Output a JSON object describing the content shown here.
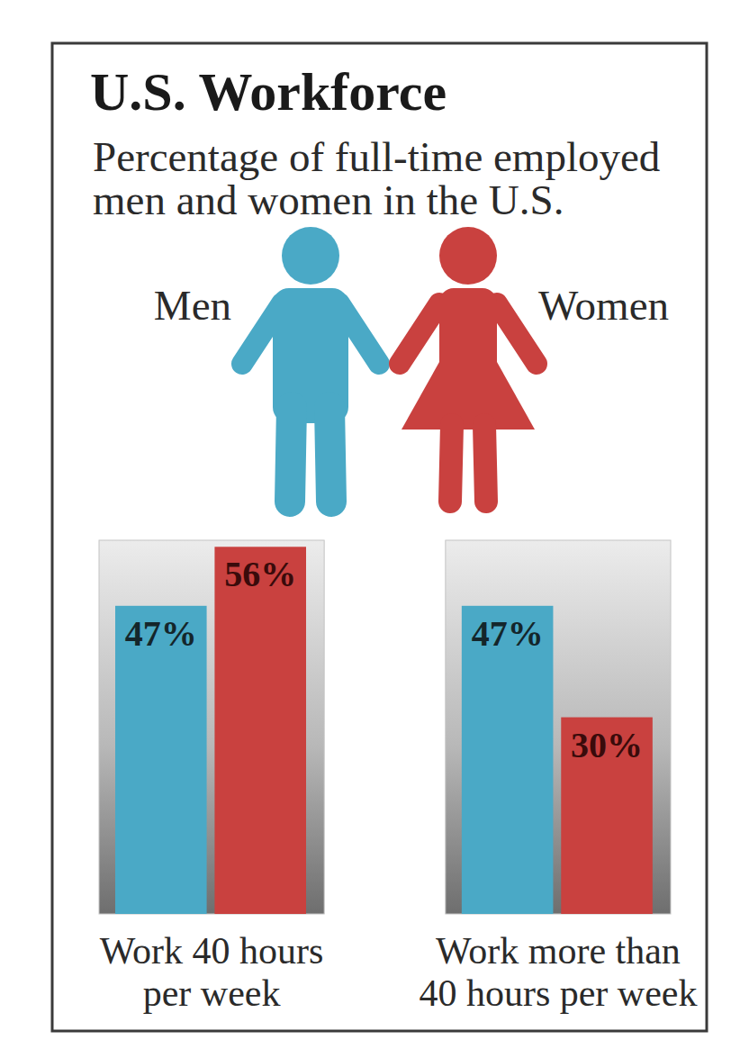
{
  "chart_data": {
    "type": "bar",
    "title": "U.S. Workforce",
    "subtitle": "Percentage of full-time employed men and women in the U.S.",
    "categories": [
      "Work 40 hours per week",
      "Work more than 40 hours per week"
    ],
    "series": [
      {
        "name": "Men",
        "color": "#4aa9c6",
        "values": [
          47,
          47
        ],
        "value_labels": [
          "47%",
          "47%"
        ]
      },
      {
        "name": "Women",
        "color": "#c9413f",
        "values": [
          56,
          30
        ],
        "value_labels": [
          "56%",
          "30%"
        ]
      }
    ],
    "ylim": [
      0,
      57
    ],
    "yticks": [],
    "tick_labels": "x",
    "data_labels": true,
    "grid": false,
    "legend": "top"
  }
}
